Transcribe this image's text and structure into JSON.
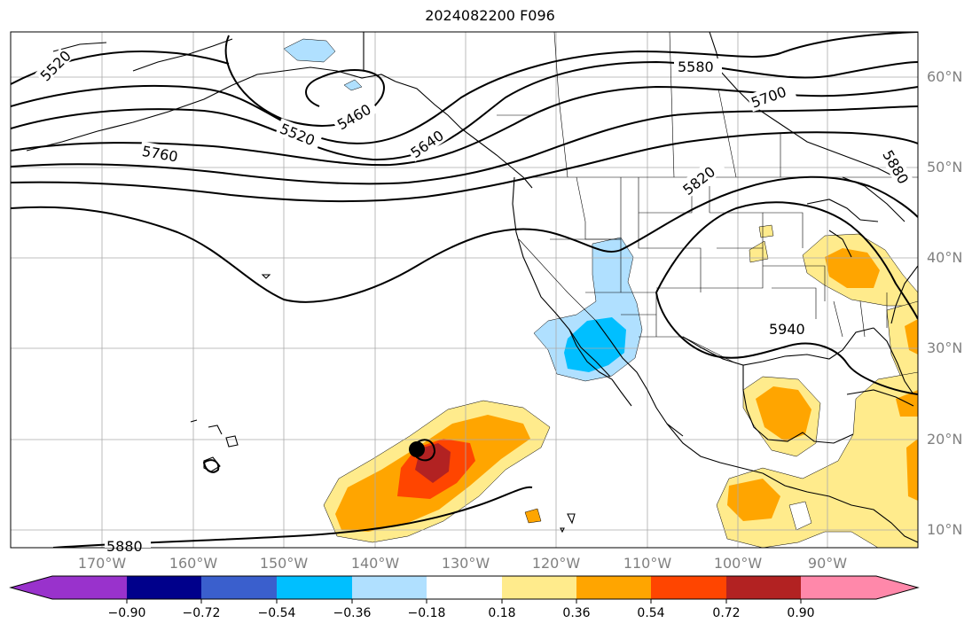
{
  "title": "2024082200 F096",
  "map": {
    "lat_labels": [
      "60°N",
      "50°N",
      "40°N",
      "30°N",
      "20°N",
      "10°N"
    ],
    "lon_labels": [
      "170°W",
      "160°W",
      "150°W",
      "140°W",
      "130°W",
      "120°W",
      "110°W",
      "100°W",
      "90°W"
    ],
    "contour_labels": [
      "5520",
      "5460",
      "5520",
      "5640",
      "5580",
      "5700",
      "5760",
      "5820",
      "5880",
      "5940",
      "5880"
    ],
    "colors": {
      "light_blue": "#b0e0ff",
      "cyan": "#00bfff",
      "light_yellow": "#ffeb8c",
      "orange": "#ffa500",
      "red_orange": "#ff4500",
      "dark_red": "#b22222",
      "grid": "#aaaaaa",
      "coast": "#000000"
    }
  },
  "colorbar": {
    "tick_labels": [
      "−0.90",
      "−0.72",
      "−0.54",
      "−0.36",
      "−0.18",
      "0.18",
      "0.36",
      "0.54",
      "0.72",
      "0.90"
    ],
    "colors": [
      "#9932cc",
      "#00008b",
      "#3a5fcd",
      "#00bfff",
      "#b0e0ff",
      "#ffffff",
      "#ffeb8c",
      "#ffa500",
      "#ff4500",
      "#b22222",
      "#ff88aa"
    ]
  }
}
